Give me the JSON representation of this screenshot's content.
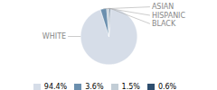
{
  "chart_data": {
    "type": "pie",
    "categories": [
      "WHITE",
      "ASIAN",
      "HISPANIC",
      "BLACK"
    ],
    "values": [
      94.4,
      3.6,
      1.5,
      0.6
    ],
    "value_labels": [
      "94.4%",
      "3.6%",
      "1.5%",
      "0.6%"
    ],
    "colors": [
      "#d6dde8",
      "#6b8fae",
      "#c2cdd6",
      "#2e4e6e"
    ],
    "legend": "bottom"
  }
}
